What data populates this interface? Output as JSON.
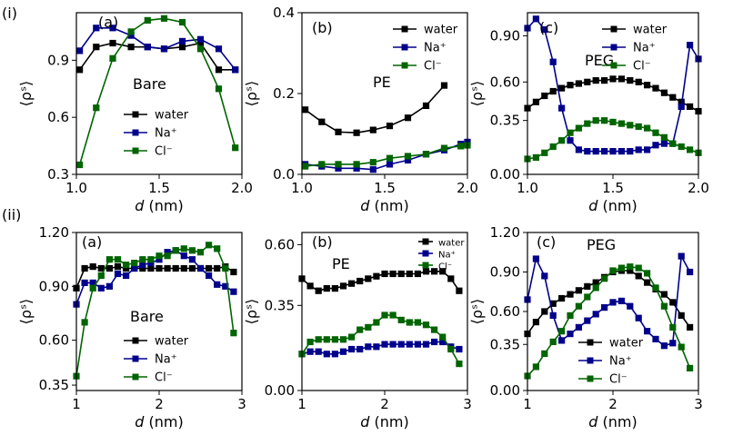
{
  "row_labels": [
    "(i)",
    "(ii)"
  ],
  "chart_data": [
    {
      "type": "line",
      "row": 0,
      "col": 0,
      "panel_label": "(a)",
      "annotation": "Bare",
      "xlabel_prefix": "d",
      "xlabel_suffix": " (nm)",
      "ylabel": "⟨ρˢ⟩",
      "xlim": [
        1.0,
        2.0
      ],
      "ylim": [
        0.3,
        1.15
      ],
      "xticks": [
        1.0,
        1.5,
        2.0
      ],
      "xtick_labels": [
        "1.0",
        "1.5",
        "2.0"
      ],
      "yticks": [
        0.3,
        0.6,
        0.9
      ],
      "ytick_labels": [
        "0.3",
        "0.6",
        "0.9"
      ],
      "legend_labels": [
        "water",
        "Na⁺",
        "Cl⁻"
      ],
      "series": [
        {
          "name": "water",
          "color": "#000000",
          "x": [
            1.02,
            1.12,
            1.22,
            1.33,
            1.43,
            1.53,
            1.64,
            1.75,
            1.86,
            1.96
          ],
          "y": [
            0.85,
            0.97,
            0.99,
            0.97,
            0.97,
            0.96,
            0.97,
            0.99,
            0.85,
            0.85
          ]
        },
        {
          "name": "Na+",
          "color": "#00008b",
          "x": [
            1.02,
            1.12,
            1.22,
            1.33,
            1.43,
            1.53,
            1.64,
            1.75,
            1.86,
            1.96
          ],
          "y": [
            0.95,
            1.07,
            1.07,
            1.03,
            0.97,
            0.96,
            1.0,
            1.01,
            0.96,
            0.85
          ]
        },
        {
          "name": "Cl-",
          "color": "#006400",
          "x": [
            1.02,
            1.12,
            1.22,
            1.33,
            1.43,
            1.53,
            1.64,
            1.75,
            1.86,
            1.96
          ],
          "y": [
            0.35,
            0.65,
            0.91,
            1.05,
            1.11,
            1.12,
            1.1,
            0.96,
            0.75,
            0.44
          ]
        }
      ]
    },
    {
      "type": "line",
      "row": 0,
      "col": 1,
      "panel_label": "(b)",
      "annotation": "PE",
      "xlabel_prefix": "d",
      "xlabel_suffix": " (nm)",
      "ylabel": "⟨ρˢ⟩",
      "xlim": [
        1.0,
        2.0
      ],
      "ylim": [
        0.0,
        0.4
      ],
      "xticks": [
        1.0,
        1.5,
        2.0
      ],
      "xtick_labels": [
        "1.0",
        "1.5",
        "2.0"
      ],
      "yticks": [
        0.0,
        0.2,
        0.4
      ],
      "ytick_labels": [
        "0.0",
        "0.2",
        "0.4"
      ],
      "legend_labels": [
        "water",
        "Na⁺",
        "Cl⁻"
      ],
      "series": [
        {
          "name": "water",
          "color": "#000000",
          "x": [
            1.02,
            1.12,
            1.22,
            1.33,
            1.43,
            1.53,
            1.64,
            1.75,
            1.86,
            1.96
          ],
          "y": [
            0.16,
            0.13,
            0.105,
            0.103,
            0.11,
            0.12,
            0.14,
            0.17,
            0.22,
            null
          ]
        },
        {
          "name": "Na+",
          "color": "#00008b",
          "x": [
            1.02,
            1.12,
            1.22,
            1.33,
            1.43,
            1.53,
            1.64,
            1.75,
            1.86,
            1.96,
            2.0
          ],
          "y": [
            0.025,
            0.02,
            0.015,
            0.015,
            0.012,
            0.025,
            0.035,
            0.05,
            0.06,
            0.075,
            0.08
          ]
        },
        {
          "name": "Cl-",
          "color": "#006400",
          "x": [
            1.02,
            1.12,
            1.22,
            1.33,
            1.43,
            1.53,
            1.64,
            1.75,
            1.86,
            1.96,
            2.0
          ],
          "y": [
            0.02,
            0.025,
            0.025,
            0.025,
            0.03,
            0.04,
            0.045,
            0.05,
            0.065,
            0.07,
            0.072
          ]
        }
      ]
    },
    {
      "type": "line",
      "row": 0,
      "col": 2,
      "panel_label": "(c)",
      "annotation": "PEG",
      "xlabel_prefix": "d",
      "xlabel_suffix": " (nm)",
      "ylabel": "⟨ρˢ⟩",
      "xlim": [
        1.0,
        2.0
      ],
      "ylim": [
        0.0,
        1.05
      ],
      "xticks": [
        1.0,
        1.5,
        2.0
      ],
      "xtick_labels": [
        "1.0",
        "1.5",
        "2.0"
      ],
      "yticks": [
        0.0,
        0.35,
        0.6,
        0.9
      ],
      "ytick_labels": [
        "0.00",
        "0.35",
        "0.60",
        "0.90"
      ],
      "legend_labels": [
        "water",
        "Na⁺",
        "Cl⁻"
      ],
      "series": [
        {
          "name": "water",
          "color": "#000000",
          "x": [
            1.0,
            1.05,
            1.1,
            1.15,
            1.2,
            1.25,
            1.3,
            1.35,
            1.4,
            1.45,
            1.5,
            1.55,
            1.6,
            1.65,
            1.7,
            1.75,
            1.8,
            1.85,
            1.9,
            1.95,
            2.0
          ],
          "y": [
            0.43,
            0.47,
            0.51,
            0.54,
            0.56,
            0.58,
            0.59,
            0.6,
            0.61,
            0.61,
            0.62,
            0.62,
            0.61,
            0.6,
            0.58,
            0.56,
            0.53,
            0.5,
            0.47,
            0.44,
            0.41
          ]
        },
        {
          "name": "Na+",
          "color": "#00008b",
          "x": [
            1.0,
            1.05,
            1.1,
            1.15,
            1.2,
            1.25,
            1.3,
            1.35,
            1.4,
            1.45,
            1.5,
            1.55,
            1.6,
            1.65,
            1.7,
            1.75,
            1.8,
            1.85,
            1.9,
            1.95,
            2.0
          ],
          "y": [
            0.95,
            1.01,
            0.94,
            0.73,
            0.43,
            0.22,
            0.16,
            0.15,
            0.15,
            0.15,
            0.15,
            0.15,
            0.15,
            0.16,
            0.16,
            0.19,
            0.2,
            0.2,
            0.44,
            0.84,
            0.75
          ]
        },
        {
          "name": "Cl-",
          "color": "#006400",
          "x": [
            1.0,
            1.05,
            1.1,
            1.15,
            1.2,
            1.25,
            1.3,
            1.35,
            1.4,
            1.45,
            1.5,
            1.55,
            1.6,
            1.65,
            1.7,
            1.75,
            1.8,
            1.85,
            1.9,
            1.95,
            2.0
          ],
          "y": [
            0.1,
            0.11,
            0.14,
            0.18,
            0.22,
            0.27,
            0.3,
            0.33,
            0.35,
            0.35,
            0.34,
            0.33,
            0.32,
            0.31,
            0.3,
            0.27,
            0.24,
            0.2,
            0.18,
            0.16,
            0.14
          ]
        }
      ]
    },
    {
      "type": "line",
      "row": 1,
      "col": 0,
      "panel_label": "(a)",
      "annotation": "Bare",
      "xlabel_prefix": "d",
      "xlabel_suffix": " (nm)",
      "ylabel": "⟨ρˢ⟩",
      "xlim": [
        1.0,
        3.0
      ],
      "ylim": [
        0.32,
        1.2
      ],
      "xticks": [
        1,
        2,
        3
      ],
      "xtick_labels": [
        "1",
        "2",
        "3"
      ],
      "yticks": [
        0.35,
        0.6,
        0.9,
        1.2
      ],
      "ytick_labels": [
        "0.35",
        "0.60",
        "0.90",
        "1.20"
      ],
      "legend_labels": [
        "water",
        "Na⁺",
        "Cl⁻"
      ],
      "series": [
        {
          "name": "water",
          "color": "#000000",
          "x": [
            1.0,
            1.1,
            1.2,
            1.3,
            1.4,
            1.5,
            1.6,
            1.7,
            1.8,
            1.9,
            2.0,
            2.1,
            2.2,
            2.3,
            2.4,
            2.5,
            2.6,
            2.7,
            2.8,
            2.9
          ],
          "y": [
            0.89,
            1.0,
            1.01,
            1.0,
            1.0,
            1.01,
            1.0,
            1.0,
            1.0,
            1.0,
            1.0,
            1.0,
            1.0,
            1.0,
            1.0,
            1.0,
            1.0,
            1.0,
            1.01,
            0.98
          ]
        },
        {
          "name": "Na+",
          "color": "#00008b",
          "x": [
            1.0,
            1.1,
            1.2,
            1.3,
            1.4,
            1.5,
            1.6,
            1.7,
            1.8,
            1.9,
            2.0,
            2.1,
            2.2,
            2.3,
            2.4,
            2.5,
            2.6,
            2.7,
            2.8,
            2.9
          ],
          "y": [
            0.8,
            0.92,
            0.92,
            0.89,
            0.9,
            0.97,
            0.96,
            1.0,
            1.02,
            1.03,
            1.05,
            1.09,
            1.1,
            1.07,
            1.05,
            1.0,
            0.96,
            0.91,
            0.9,
            0.87
          ]
        },
        {
          "name": "Cl-",
          "color": "#006400",
          "x": [
            1.0,
            1.1,
            1.2,
            1.3,
            1.4,
            1.5,
            1.6,
            1.7,
            1.8,
            1.9,
            2.0,
            2.1,
            2.2,
            2.3,
            2.4,
            2.5,
            2.6,
            2.7,
            2.8,
            2.9
          ],
          "y": [
            0.4,
            0.7,
            0.89,
            0.96,
            1.05,
            1.05,
            1.02,
            1.03,
            1.05,
            1.05,
            1.07,
            1.07,
            1.1,
            1.11,
            1.1,
            1.09,
            1.13,
            1.11,
            1.0,
            0.64
          ]
        }
      ]
    },
    {
      "type": "line",
      "row": 1,
      "col": 1,
      "panel_label": "(b)",
      "annotation": "PE",
      "xlabel_prefix": "d",
      "xlabel_suffix": " (nm)",
      "ylabel": "⟨ρˢ⟩",
      "xlim": [
        1.0,
        3.0
      ],
      "ylim": [
        0.0,
        0.65
      ],
      "xticks": [
        1,
        2,
        3
      ],
      "xtick_labels": [
        "1",
        "2",
        "3"
      ],
      "yticks": [
        0.0,
        0.35,
        0.6
      ],
      "ytick_labels": [
        "0.00",
        "0.35",
        "0.60"
      ],
      "legend_labels": [
        "water",
        "Na⁺",
        "Cl⁻"
      ],
      "series": [
        {
          "name": "water",
          "color": "#000000",
          "x": [
            1.0,
            1.1,
            1.2,
            1.3,
            1.4,
            1.5,
            1.6,
            1.7,
            1.8,
            1.9,
            2.0,
            2.1,
            2.2,
            2.3,
            2.4,
            2.5,
            2.6,
            2.7,
            2.8,
            2.9
          ],
          "y": [
            0.46,
            0.43,
            0.41,
            0.42,
            0.42,
            0.43,
            0.44,
            0.45,
            0.46,
            0.47,
            0.48,
            0.48,
            0.48,
            0.48,
            0.48,
            0.49,
            0.49,
            0.49,
            0.46,
            0.41
          ]
        },
        {
          "name": "Na+",
          "color": "#00008b",
          "x": [
            1.0,
            1.1,
            1.2,
            1.3,
            1.4,
            1.5,
            1.6,
            1.7,
            1.8,
            1.9,
            2.0,
            2.1,
            2.2,
            2.3,
            2.4,
            2.5,
            2.6,
            2.7,
            2.8,
            2.9
          ],
          "y": [
            0.15,
            0.16,
            0.16,
            0.15,
            0.15,
            0.16,
            0.17,
            0.17,
            0.18,
            0.18,
            0.19,
            0.19,
            0.19,
            0.19,
            0.19,
            0.19,
            0.2,
            0.2,
            0.18,
            0.17
          ]
        },
        {
          "name": "Cl-",
          "color": "#006400",
          "x": [
            1.0,
            1.1,
            1.2,
            1.3,
            1.4,
            1.5,
            1.6,
            1.7,
            1.8,
            1.9,
            2.0,
            2.1,
            2.2,
            2.3,
            2.4,
            2.5,
            2.6,
            2.7,
            2.8,
            2.9
          ],
          "y": [
            0.15,
            0.2,
            0.21,
            0.21,
            0.21,
            0.21,
            0.22,
            0.25,
            0.26,
            0.28,
            0.31,
            0.31,
            0.29,
            0.28,
            0.28,
            0.27,
            0.25,
            0.22,
            0.17,
            0.11
          ]
        }
      ]
    },
    {
      "type": "line",
      "row": 1,
      "col": 2,
      "panel_label": "(c)",
      "annotation": "PEG",
      "xlabel_prefix": "d",
      "xlabel_suffix": " (nm)",
      "ylabel": "⟨ρˢ⟩",
      "xlim": [
        1.0,
        3.0
      ],
      "ylim": [
        0.0,
        1.2
      ],
      "xticks": [
        1,
        2,
        3
      ],
      "xtick_labels": [
        "1",
        "2",
        "3"
      ],
      "yticks": [
        0.0,
        0.35,
        0.6,
        0.9,
        1.2
      ],
      "ytick_labels": [
        "0.00",
        "0.35",
        "0.60",
        "0.90",
        "1.20"
      ],
      "legend_labels": [
        "water",
        "Na⁺",
        "Cl⁻"
      ],
      "series": [
        {
          "name": "water",
          "color": "#000000",
          "x": [
            1.0,
            1.1,
            1.2,
            1.3,
            1.4,
            1.5,
            1.6,
            1.7,
            1.8,
            1.9,
            2.0,
            2.1,
            2.2,
            2.3,
            2.4,
            2.5,
            2.6,
            2.7,
            2.8,
            2.9
          ],
          "y": [
            0.43,
            0.52,
            0.6,
            0.66,
            0.7,
            0.73,
            0.76,
            0.79,
            0.82,
            0.86,
            0.9,
            0.91,
            0.91,
            0.87,
            0.82,
            0.77,
            0.73,
            0.67,
            0.57,
            0.48
          ]
        },
        {
          "name": "Na+",
          "color": "#00008b",
          "x": [
            1.0,
            1.1,
            1.2,
            1.3,
            1.4,
            1.5,
            1.6,
            1.7,
            1.8,
            1.9,
            2.0,
            2.1,
            2.2,
            2.3,
            2.4,
            2.5,
            2.6,
            2.7,
            2.8,
            2.9
          ],
          "y": [
            0.69,
            1.0,
            0.87,
            0.57,
            0.38,
            0.43,
            0.48,
            0.53,
            0.58,
            0.63,
            0.67,
            0.68,
            0.64,
            0.55,
            0.45,
            0.39,
            0.34,
            0.36,
            1.02,
            0.9
          ]
        },
        {
          "name": "Cl-",
          "color": "#006400",
          "x": [
            1.0,
            1.1,
            1.2,
            1.3,
            1.4,
            1.5,
            1.6,
            1.7,
            1.8,
            1.9,
            2.0,
            2.1,
            2.2,
            2.3,
            2.4,
            2.5,
            2.6,
            2.7,
            2.8,
            2.9
          ],
          "y": [
            0.11,
            0.18,
            0.28,
            0.37,
            0.45,
            0.57,
            0.64,
            0.71,
            0.78,
            0.85,
            0.91,
            0.93,
            0.94,
            0.93,
            0.89,
            0.78,
            0.64,
            0.48,
            0.33,
            0.17
          ]
        }
      ]
    }
  ]
}
